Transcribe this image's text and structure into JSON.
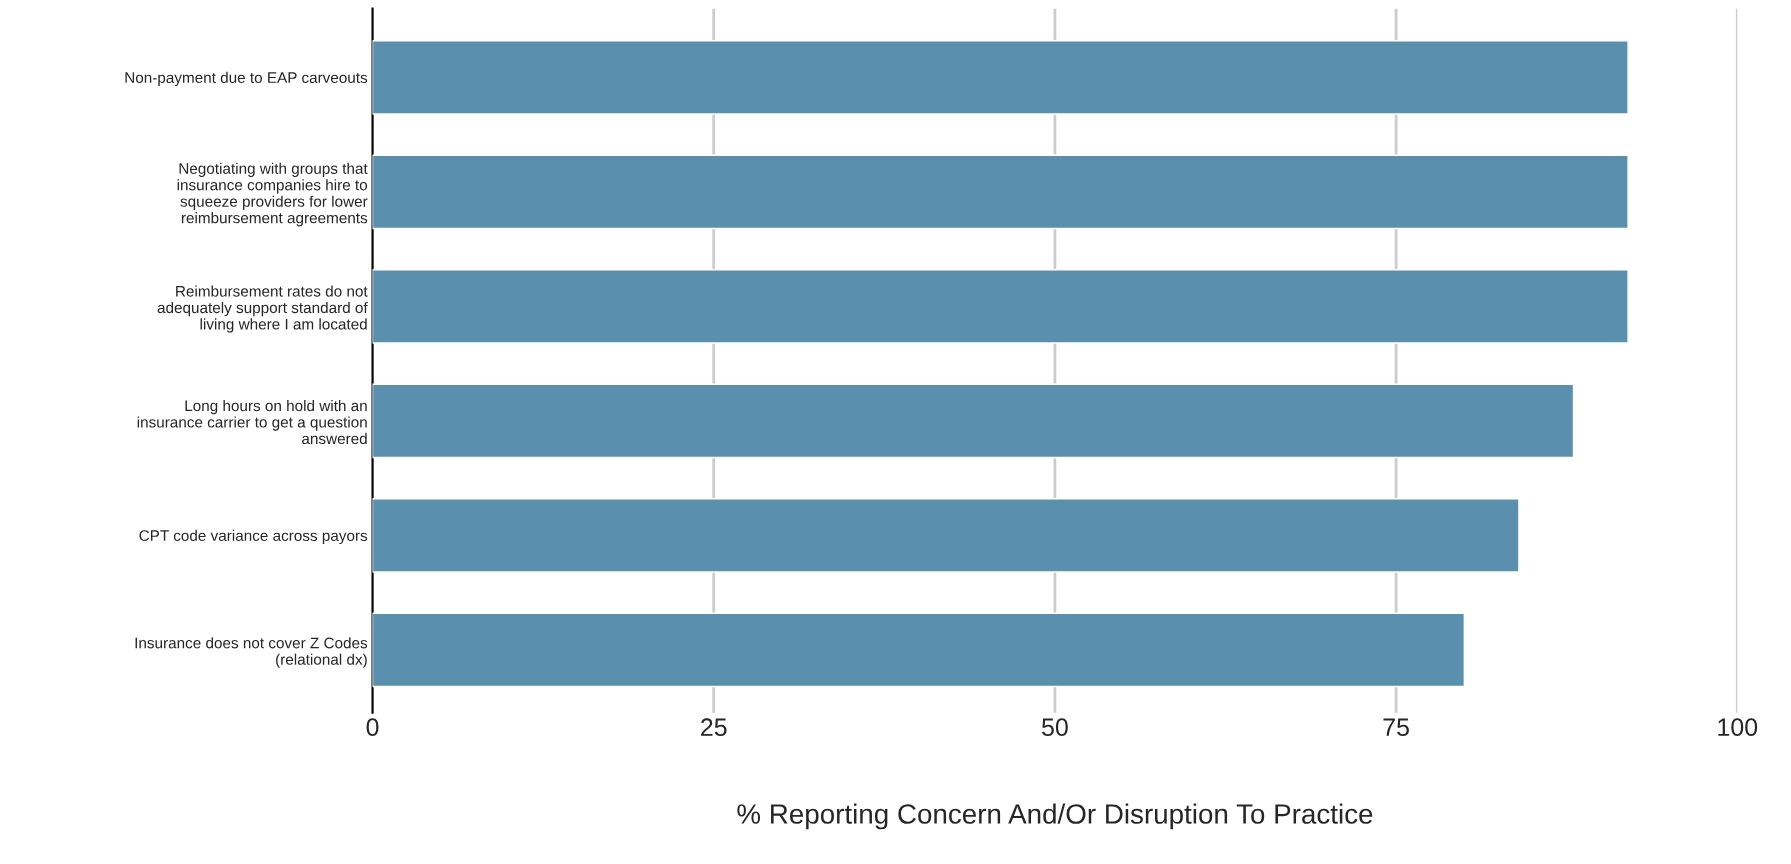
{
  "chart_data": {
    "type": "bar",
    "orientation": "horizontal",
    "xlabel": "% Reporting Concern And/Or Disruption To Practice",
    "categories": [
      "Non-payment due to EAP carveouts",
      "Negotiating with groups that\ninsurance companies hire to\nsqueeze providers for lower\nreimbursement agreements",
      "Reimbursement rates do not\nadequately support standard of\nliving where I am located",
      "Long hours on hold with an\ninsurance carrier to get a question\nanswered",
      "CPT code variance across payors",
      "Insurance does not cover Z Codes\n(relational dx)"
    ],
    "values": [
      92,
      92,
      92,
      88,
      84,
      80
    ],
    "color": "#5a90ae",
    "xlim": [
      0,
      100
    ],
    "xticks": [
      0,
      25,
      50,
      75,
      100
    ],
    "grid": "x"
  }
}
